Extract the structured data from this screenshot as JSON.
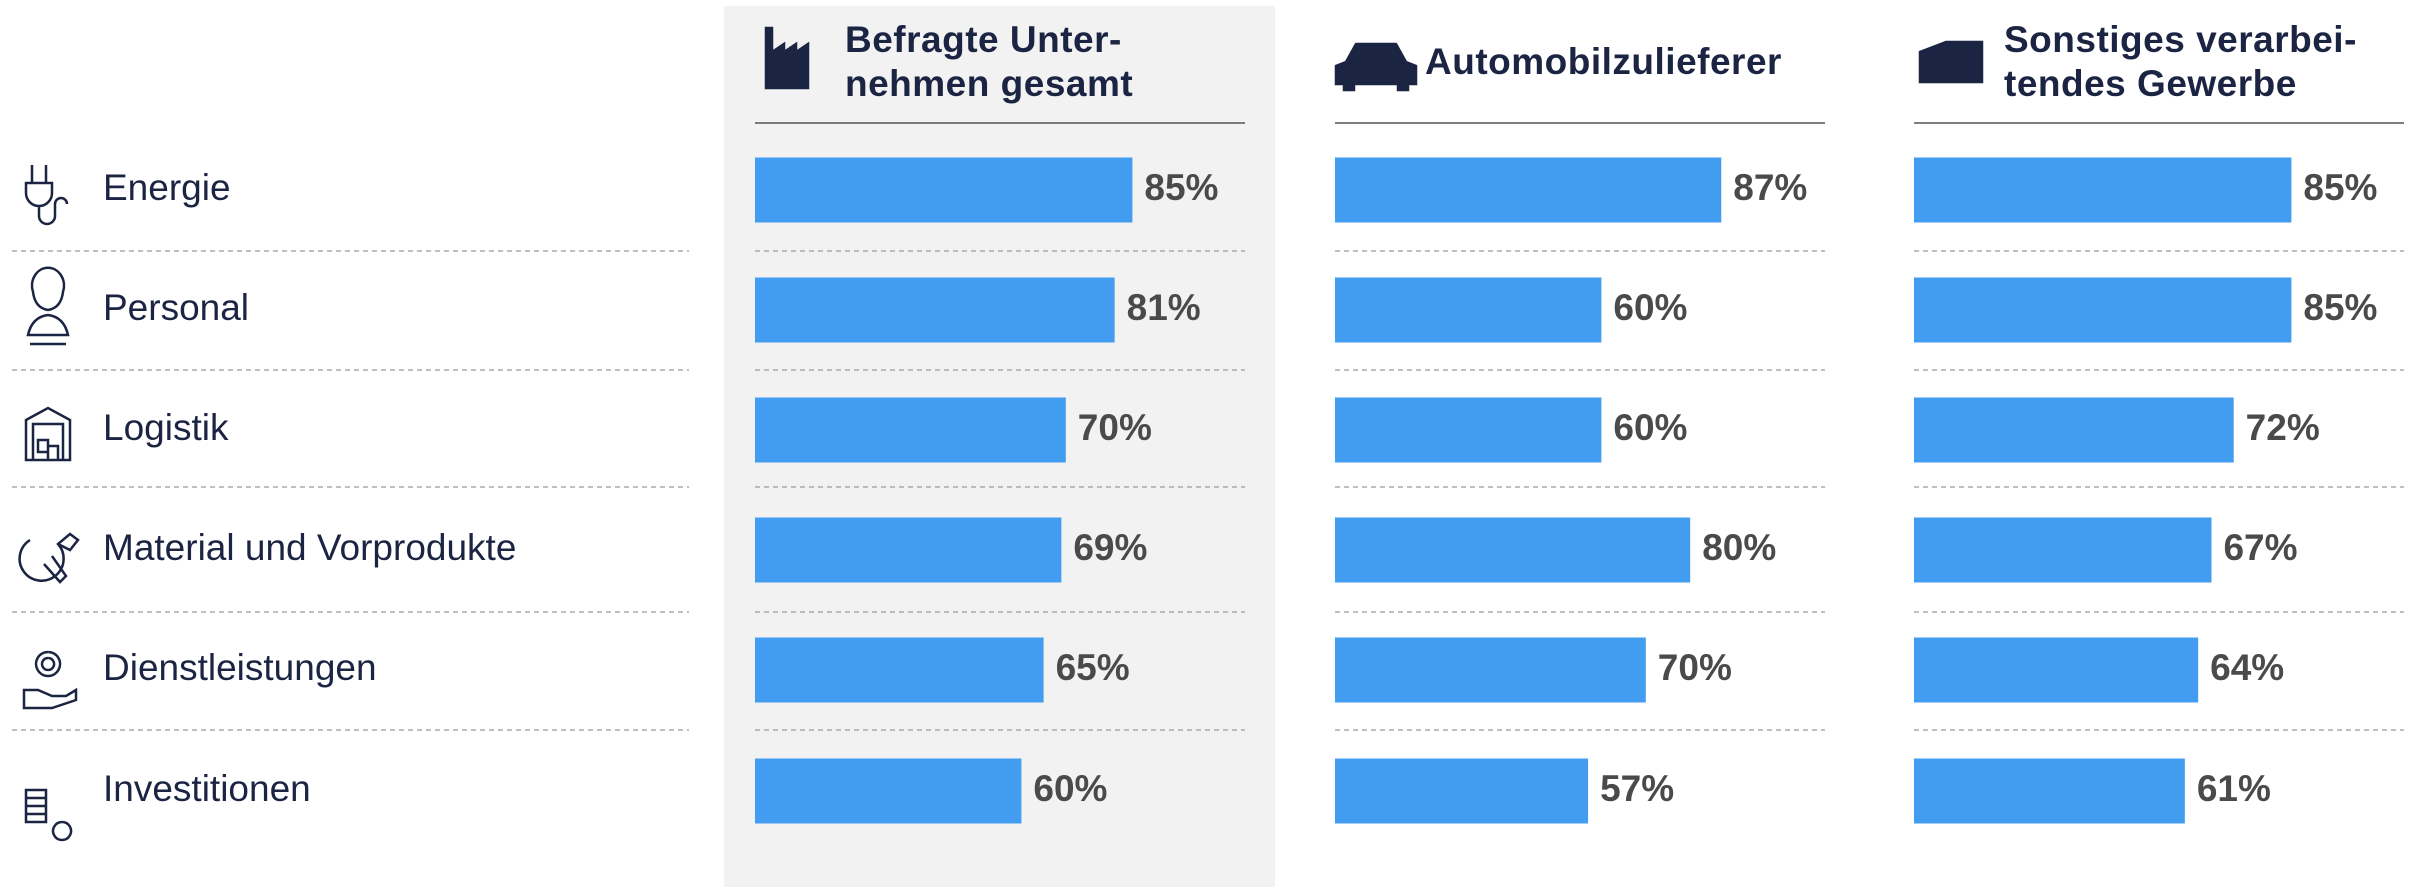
{
  "chart_data": {
    "type": "bar",
    "categories": [
      "Energie",
      "Personal",
      "Logistik",
      "Material und Vorprodukte",
      "Dienstleistungen",
      "Investitionen"
    ],
    "xlim": [
      0,
      100
    ],
    "series": [
      {
        "name": "Befragte Unter-\nnehmen gesamt",
        "color": "#429df1",
        "values": [
          85,
          81,
          70,
          69,
          65,
          60
        ],
        "value_labels": [
          "85%",
          "81%",
          "70%",
          "69%",
          "65%",
          "60%"
        ]
      },
      {
        "name": "Automobilzulieferer",
        "color": "#429df1",
        "values": [
          87,
          60,
          60,
          80,
          70,
          57
        ],
        "value_labels": [
          "87%",
          "60%",
          "60%",
          "80%",
          "70%",
          "57%"
        ]
      },
      {
        "name": "Sonstiges verarbei-\ntendes Gewerbe",
        "color": "#429df1",
        "values": [
          85,
          85,
          72,
          67,
          64,
          61
        ],
        "value_labels": [
          "85%",
          "85%",
          "72%",
          "67%",
          "64%",
          "61%"
        ]
      }
    ]
  }
}
